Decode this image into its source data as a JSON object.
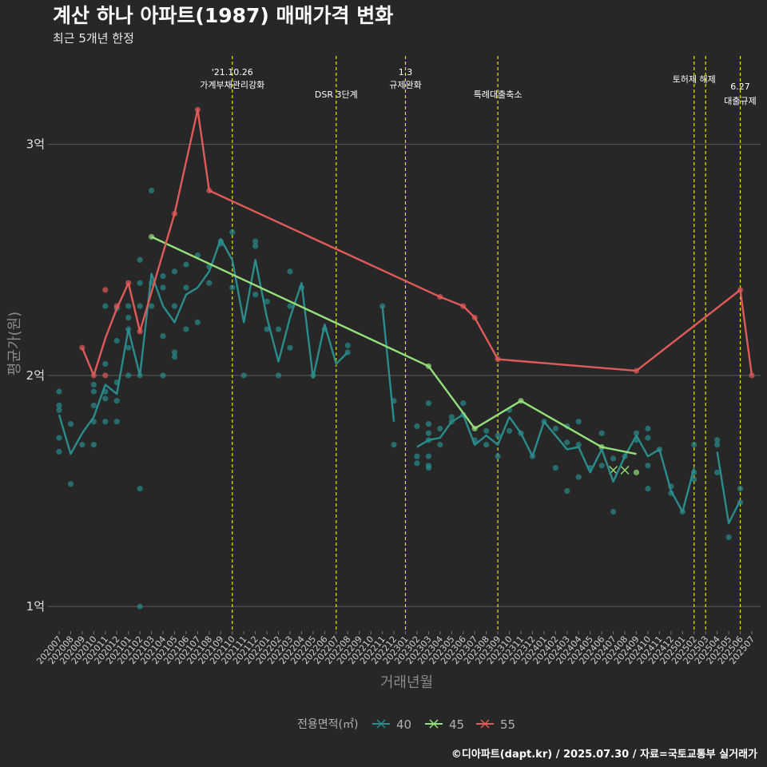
{
  "header": {
    "title": "계산 하나 아파트(1987) 매매가격 변화",
    "subtitle": "최근 5개년 한정"
  },
  "caption": "©디아파트(dapt.kr) / 2025.07.30 / 자료=국토교통부 실거래가",
  "colors": {
    "background": "#272727",
    "grid": "#5a5a5a",
    "event_line": "#e6e600",
    "s40": "#2a8c8c",
    "s45": "#96e07c",
    "s55": "#e05a5a"
  },
  "chart_data": {
    "type": "line",
    "xlabel": "거래년월",
    "ylabel": "평균가(원)",
    "ylim": [
      0.9,
      3.4
    ],
    "yticks": [
      {
        "value": 1,
        "label": "1억"
      },
      {
        "value": 2,
        "label": "2억"
      },
      {
        "value": 3,
        "label": "3억"
      }
    ],
    "grid": true,
    "legend": {
      "title": "전용면적(㎡)",
      "position": "bottom",
      "entries": [
        "40",
        "45",
        "55"
      ]
    },
    "x_categories": [
      "202007",
      "202008",
      "202009",
      "202010",
      "202011",
      "202012",
      "202101",
      "202102",
      "202103",
      "202104",
      "202105",
      "202106",
      "202107",
      "202108",
      "202109",
      "202110",
      "202111",
      "202112",
      "202201",
      "202202",
      "202203",
      "202204",
      "202205",
      "202206",
      "202207",
      "202208",
      "202209",
      "202210",
      "202211",
      "202212",
      "202301",
      "202302",
      "202303",
      "202304",
      "202305",
      "202306",
      "202307",
      "202308",
      "202309",
      "202310",
      "202311",
      "202312",
      "202401",
      "202402",
      "202403",
      "202404",
      "202405",
      "202406",
      "202407",
      "202408",
      "202409",
      "202410",
      "202411",
      "202412",
      "202501",
      "202502",
      "202503",
      "202504",
      "202505",
      "202506",
      "202507"
    ],
    "events": [
      {
        "x": "202110",
        "lines": [
          "'21.10.26",
          "가계부채관리강화"
        ]
      },
      {
        "x": "202207",
        "lines": [
          "DSR 3단계"
        ]
      },
      {
        "x": "202301",
        "lines": [
          "1.3",
          "규제완화"
        ]
      },
      {
        "x": "202309",
        "lines": [
          "특례대출축소"
        ]
      },
      {
        "x": "202502",
        "lines": [
          "토허제 해제"
        ]
      },
      {
        "x": "202503",
        "lines": []
      },
      {
        "x": "202506",
        "lines": [
          "6.27",
          "대출규제"
        ]
      }
    ],
    "series": [
      {
        "name": "40",
        "line": [
          [
            "202007",
            1.83
          ],
          [
            "202008",
            1.66
          ],
          [
            "202009",
            1.75
          ],
          [
            "202010",
            1.82
          ],
          [
            "202011",
            1.96
          ],
          [
            "202012",
            1.92
          ],
          [
            "202101",
            2.2
          ],
          [
            "202102",
            2.0
          ],
          [
            "202103",
            2.44
          ],
          [
            "202104",
            2.3
          ],
          [
            "202105",
            2.23
          ],
          [
            "202106",
            2.35
          ],
          [
            "202107",
            2.38
          ],
          [
            "202108",
            2.45
          ],
          [
            "202109",
            2.59
          ],
          [
            "202110",
            2.5
          ],
          [
            "202111",
            2.23
          ],
          [
            "202112",
            2.5
          ],
          [
            "202201",
            2.25
          ],
          [
            "202202",
            2.06
          ],
          [
            "202203",
            2.25
          ],
          [
            "202204",
            2.4
          ],
          [
            "202205",
            1.99
          ],
          [
            "202206",
            2.22
          ],
          [
            "202207",
            2.05
          ],
          [
            "202208",
            2.1
          ],
          null,
          [
            "202211",
            2.3
          ],
          [
            "202212",
            1.8
          ],
          null,
          [
            "202302",
            1.69
          ],
          [
            "202303",
            1.72
          ],
          [
            "202304",
            1.73
          ],
          [
            "202305",
            1.8
          ],
          [
            "202306",
            1.83
          ],
          [
            "202307",
            1.7
          ],
          [
            "202308",
            1.74
          ],
          [
            "202309",
            1.7
          ],
          [
            "202310",
            1.82
          ],
          [
            "202311",
            1.75
          ],
          [
            "202312",
            1.65
          ],
          [
            "202401",
            1.8
          ],
          [
            "202402",
            1.74
          ],
          [
            "202403",
            1.68
          ],
          [
            "202404",
            1.69
          ],
          [
            "202405",
            1.58
          ],
          [
            "202406",
            1.68
          ],
          [
            "202407",
            1.54
          ],
          [
            "202408",
            1.65
          ],
          [
            "202409",
            1.74
          ],
          [
            "202410",
            1.65
          ],
          [
            "202411",
            1.68
          ],
          [
            "202412",
            1.5
          ],
          [
            "202501",
            1.41
          ],
          [
            "202502",
            1.6
          ],
          null,
          [
            "202504",
            1.67
          ],
          [
            "202505",
            1.36
          ],
          [
            "202506",
            1.46
          ]
        ],
        "points": [
          [
            "202007",
            1.93
          ],
          [
            "202007",
            1.87
          ],
          [
            "202007",
            1.85
          ],
          [
            "202007",
            1.73
          ],
          [
            "202007",
            1.67
          ],
          [
            "202008",
            1.79
          ],
          [
            "202008",
            1.53
          ],
          [
            "202009",
            1.7
          ],
          [
            "202010",
            1.96
          ],
          [
            "202010",
            1.93
          ],
          [
            "202010",
            1.87
          ],
          [
            "202010",
            1.8
          ],
          [
            "202010",
            1.7
          ],
          [
            "202011",
            2.3
          ],
          [
            "202011",
            2.05
          ],
          [
            "202011",
            1.93
          ],
          [
            "202011",
            1.9
          ],
          [
            "202011",
            1.8
          ],
          [
            "202012",
            2.29
          ],
          [
            "202012",
            2.15
          ],
          [
            "202012",
            1.97
          ],
          [
            "202012",
            1.89
          ],
          [
            "202012",
            1.8
          ],
          [
            "202101",
            2.3
          ],
          [
            "202101",
            2.25
          ],
          [
            "202101",
            2.2
          ],
          [
            "202101",
            2.12
          ],
          [
            "202101",
            2.0
          ],
          [
            "202102",
            2.5
          ],
          [
            "202102",
            2.4
          ],
          [
            "202102",
            2.3
          ],
          [
            "202102",
            2.0
          ],
          [
            "202102",
            1.51
          ],
          [
            "202102",
            1.0
          ],
          [
            "202103",
            2.8
          ],
          [
            "202103",
            2.4
          ],
          [
            "202103",
            2.3
          ],
          [
            "202104",
            2.43
          ],
          [
            "202104",
            2.38
          ],
          [
            "202104",
            2.17
          ],
          [
            "202104",
            2.0
          ],
          [
            "202105",
            2.45
          ],
          [
            "202105",
            2.3
          ],
          [
            "202105",
            2.1
          ],
          [
            "202105",
            2.08
          ],
          [
            "202106",
            2.48
          ],
          [
            "202106",
            2.38
          ],
          [
            "202106",
            2.2
          ],
          [
            "202107",
            2.52
          ],
          [
            "202107",
            2.23
          ],
          [
            "202108",
            2.47
          ],
          [
            "202108",
            2.4
          ],
          [
            "202109",
            2.58
          ],
          [
            "202109",
            2.57
          ],
          [
            "202110",
            2.62
          ],
          [
            "202110",
            2.38
          ],
          [
            "202111",
            2.0
          ],
          [
            "202112",
            2.58
          ],
          [
            "202112",
            2.56
          ],
          [
            "202112",
            2.35
          ],
          [
            "202201",
            2.32
          ],
          [
            "202201",
            2.2
          ],
          [
            "202202",
            2.2
          ],
          [
            "202202",
            2.0
          ],
          [
            "202203",
            2.45
          ],
          [
            "202203",
            2.3
          ],
          [
            "202203",
            2.12
          ],
          [
            "202204",
            2.38
          ],
          [
            "202205",
            2.0
          ],
          [
            "202206",
            2.2
          ],
          [
            "202208",
            2.13
          ],
          [
            "202208",
            2.1
          ],
          [
            "202211",
            2.3
          ],
          [
            "202212",
            1.89
          ],
          [
            "202212",
            1.7
          ],
          [
            "202302",
            1.78
          ],
          [
            "202302",
            1.65
          ],
          [
            "202302",
            1.62
          ],
          [
            "202303",
            1.88
          ],
          [
            "202303",
            1.79
          ],
          [
            "202303",
            1.75
          ],
          [
            "202303",
            1.72
          ],
          [
            "202303",
            1.65
          ],
          [
            "202303",
            1.61
          ],
          [
            "202303",
            1.6
          ],
          [
            "202304",
            1.77
          ],
          [
            "202304",
            1.7
          ],
          [
            "202305",
            1.82
          ],
          [
            "202305",
            1.8
          ],
          [
            "202306",
            1.88
          ],
          [
            "202306",
            1.83
          ],
          [
            "202307",
            1.72
          ],
          [
            "202308",
            1.76
          ],
          [
            "202308",
            1.7
          ],
          [
            "202309",
            1.74
          ],
          [
            "202309",
            1.65
          ],
          [
            "202310",
            1.85
          ],
          [
            "202310",
            1.76
          ],
          [
            "202311",
            1.75
          ],
          [
            "202312",
            1.65
          ],
          [
            "202401",
            1.8
          ],
          [
            "202402",
            1.77
          ],
          [
            "202402",
            1.6
          ],
          [
            "202403",
            1.78
          ],
          [
            "202403",
            1.71
          ],
          [
            "202403",
            1.5
          ],
          [
            "202404",
            1.8
          ],
          [
            "202404",
            1.7
          ],
          [
            "202404",
            1.56
          ],
          [
            "202405",
            1.6
          ],
          [
            "202406",
            1.75
          ],
          [
            "202406",
            1.61
          ],
          [
            "202407",
            1.64
          ],
          [
            "202407",
            1.41
          ],
          [
            "202408",
            1.65
          ],
          [
            "202409",
            1.75
          ],
          [
            "202409",
            1.72
          ],
          [
            "202410",
            1.77
          ],
          [
            "202410",
            1.73
          ],
          [
            "202410",
            1.61
          ],
          [
            "202410",
            1.51
          ],
          [
            "202411",
            1.68
          ],
          [
            "202412",
            1.52
          ],
          [
            "202412",
            1.49
          ],
          [
            "202501",
            1.41
          ],
          [
            "202502",
            1.7
          ],
          [
            "202502",
            1.58
          ],
          [
            "202502",
            1.55
          ],
          [
            "202504",
            1.72
          ],
          [
            "202504",
            1.7
          ],
          [
            "202504",
            1.58
          ],
          [
            "202505",
            1.3
          ],
          [
            "202506",
            1.51
          ],
          [
            "202506",
            1.45
          ]
        ]
      },
      {
        "name": "45",
        "line": [
          [
            "202103",
            2.6
          ],
          [
            "202303",
            2.04
          ],
          [
            "202307",
            1.77
          ],
          [
            "202311",
            1.89
          ],
          [
            "202406",
            1.69
          ],
          [
            "202409",
            1.66
          ]
        ],
        "points": [
          [
            "202103",
            2.6
          ],
          [
            "202303",
            2.04
          ],
          [
            "202307",
            1.77
          ],
          [
            "202311",
            1.89
          ],
          [
            "202406",
            1.69
          ],
          [
            "202409",
            1.58
          ]
        ],
        "crosses": [
          [
            "202407",
            1.59
          ],
          [
            "202408",
            1.59
          ]
        ]
      },
      {
        "name": "55",
        "line": [
          [
            "202009",
            2.12
          ],
          [
            "202010",
            2.0
          ],
          [
            "202011",
            2.16
          ],
          [
            "202012",
            2.29
          ],
          [
            "202101",
            2.4
          ],
          [
            "202102",
            2.19
          ],
          [
            "202105",
            2.7
          ],
          [
            "202107",
            3.15
          ],
          [
            "202108",
            2.8
          ],
          [
            "202304",
            2.34
          ],
          [
            "202306",
            2.3
          ],
          [
            "202307",
            2.25
          ],
          [
            "202309",
            2.07
          ],
          [
            "202409",
            2.02
          ],
          [
            "202506",
            2.37
          ],
          [
            "202507",
            2.0
          ]
        ],
        "points": [
          [
            "202009",
            2.12
          ],
          [
            "202010",
            2.0
          ],
          [
            "202011",
            2.37
          ],
          [
            "202011",
            2.0
          ],
          [
            "202012",
            2.3
          ],
          [
            "202101",
            2.4
          ],
          [
            "202102",
            2.19
          ],
          [
            "202105",
            2.7
          ],
          [
            "202107",
            3.15
          ],
          [
            "202108",
            2.8
          ],
          [
            "202304",
            2.34
          ],
          [
            "202306",
            2.3
          ],
          [
            "202307",
            2.25
          ],
          [
            "202309",
            2.07
          ],
          [
            "202409",
            2.02
          ],
          [
            "202506",
            2.37
          ],
          [
            "202507",
            2.0
          ]
        ]
      }
    ]
  }
}
